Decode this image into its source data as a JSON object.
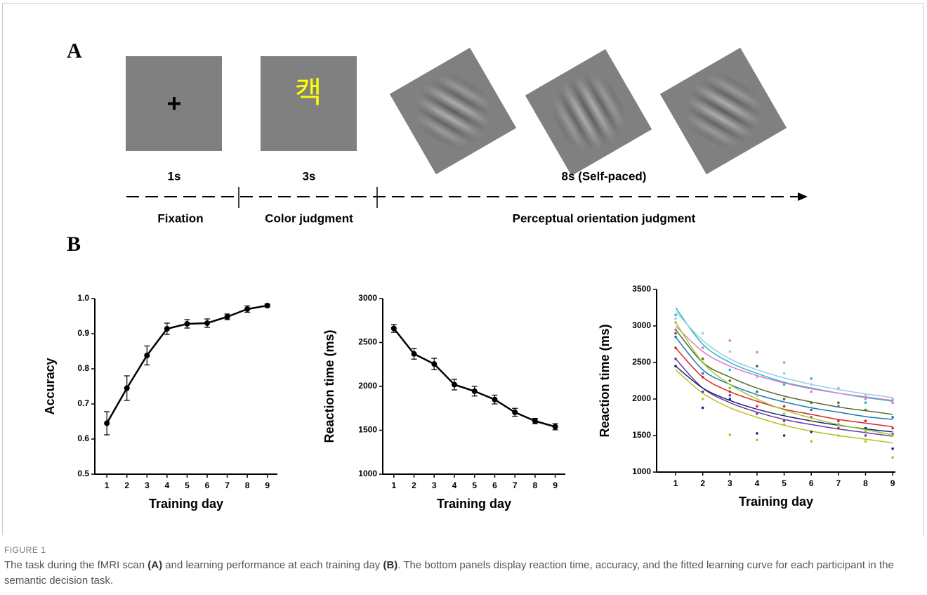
{
  "figure": {
    "panel_a": "A",
    "panel_b": "B",
    "fixation_symbol": "+",
    "color_stimulus": "캑",
    "durations": [
      "1s",
      "3s",
      "8s (Self-paced)"
    ],
    "phases": [
      "Fixation",
      "Color judgment",
      "Perceptual orientation judgment"
    ]
  },
  "chart_data": [
    {
      "type": "line",
      "xlabel": "Training day",
      "ylabel": "Accuracy",
      "color": "#000000",
      "x": [
        1,
        2,
        3,
        4,
        5,
        6,
        7,
        8,
        9
      ],
      "values": [
        0.645,
        0.745,
        0.838,
        0.914,
        0.928,
        0.93,
        0.948,
        0.97,
        0.98
      ],
      "errors": [
        0.033,
        0.035,
        0.027,
        0.016,
        0.012,
        0.012,
        0.008,
        0.009,
        0.004
      ],
      "xlim": [
        0.4,
        9.5
      ],
      "xticks": [
        1,
        2,
        3,
        4,
        5,
        6,
        7,
        8,
        9
      ],
      "ylim": [
        0.5,
        1
      ],
      "yticks": [
        0.5,
        0.6,
        0.7,
        0.8,
        0.9,
        {
          "value": 1,
          "label": "1.0"
        }
      ]
    },
    {
      "type": "line",
      "xlabel": "Training day",
      "ylabel": "Reaction time (ms)",
      "color": "#000000",
      "x": [
        1,
        2,
        3,
        4,
        5,
        6,
        7,
        8,
        9
      ],
      "values": [
        2660,
        2370,
        2255,
        2020,
        1945,
        1850,
        1705,
        1605,
        1540
      ],
      "errors": [
        45,
        60,
        65,
        60,
        55,
        50,
        45,
        30,
        35
      ],
      "xlim": [
        0.45,
        9.5
      ],
      "xticks": [
        1,
        2,
        3,
        4,
        5,
        6,
        7,
        8,
        9
      ],
      "ylim": [
        1000,
        3000
      ],
      "yticks": [
        1000,
        1500,
        2000,
        2500,
        3000
      ]
    },
    {
      "type": "scatter",
      "xlabel": "Training day",
      "ylabel": "Reaction time (ms)",
      "x": [
        1,
        2,
        3,
        4,
        5,
        6,
        7,
        8,
        9
      ],
      "xlim": [
        0.3,
        9.1
      ],
      "xticks": [
        1,
        2,
        3,
        4,
        5,
        6,
        7,
        8,
        9
      ],
      "ylim": [
        1000,
        3500
      ],
      "yticks": [
        1000,
        1500,
        2000,
        2500,
        3000,
        3500
      ],
      "series": [
        {
          "color": "#17becf",
          "values": [
            3150,
            2700,
            2400,
            2450,
            2200,
            2280,
            2150,
            1950,
            1990
          ],
          "fit": [
            3250,
            2750,
            2500,
            2350,
            2230,
            2150,
            2080,
            2020,
            1970
          ]
        },
        {
          "color": "#e377c2",
          "values": [
            2950,
            2700,
            2800,
            2640,
            2500,
            2100,
            2150,
            2000,
            1950
          ],
          "fit": [
            3000,
            2650,
            2450,
            2320,
            2220,
            2140,
            2080,
            2030,
            1980
          ]
        },
        {
          "color": "#556b2f",
          "values": [
            2900,
            2550,
            2250,
            2450,
            2000,
            1950,
            1950,
            1850,
            1750
          ],
          "fit": [
            2950,
            2500,
            2300,
            2150,
            2040,
            1960,
            1890,
            1840,
            1790
          ]
        },
        {
          "color": "#1f77b4",
          "values": [
            2850,
            2350,
            2150,
            2100,
            1900,
            1850,
            1900,
            1700,
            1750
          ],
          "fit": [
            2850,
            2400,
            2200,
            2060,
            1960,
            1880,
            1820,
            1760,
            1720
          ]
        },
        {
          "color": "#bcbd22",
          "values": [
            2450,
            2000,
            1510,
            1440,
            1650,
            1420,
            1500,
            1420,
            1200
          ],
          "fit": [
            2400,
            2080,
            1880,
            1750,
            1640,
            1560,
            1500,
            1450,
            1400
          ]
        },
        {
          "color": "#6a3d9a",
          "values": [
            2550,
            2100,
            2050,
            1800,
            1700,
            1700,
            1600,
            1500,
            1520
          ],
          "fit": [
            2550,
            2150,
            1950,
            1820,
            1720,
            1650,
            1590,
            1540,
            1490
          ]
        },
        {
          "color": "#d62728",
          "values": [
            2700,
            2300,
            2100,
            1900,
            1900,
            1750,
            1700,
            1700,
            1600
          ],
          "fit": [
            2700,
            2300,
            2100,
            1970,
            1860,
            1790,
            1720,
            1670,
            1620
          ]
        },
        {
          "color": "#1a237e",
          "values": [
            2450,
            1880,
            2000,
            1530,
            1500,
            1550,
            1650,
            1600,
            1320
          ],
          "fit": [
            2450,
            2150,
            1980,
            1860,
            1770,
            1700,
            1640,
            1590,
            1550
          ]
        },
        {
          "color": "#9ecae1",
          "values": [
            3100,
            2900,
            2650,
            2300,
            2350,
            2200,
            2150,
            2050,
            2000
          ],
          "fit": [
            3200,
            2800,
            2550,
            2400,
            2290,
            2200,
            2130,
            2070,
            2020
          ]
        },
        {
          "color": "#9acd32",
          "values": [
            3050,
            2500,
            2150,
            2050,
            1800,
            1700,
            1640,
            1560,
            1500
          ],
          "fit": [
            3050,
            2500,
            2200,
            2000,
            1850,
            1740,
            1650,
            1580,
            1510
          ]
        }
      ]
    }
  ],
  "caption": {
    "label": "FIGURE 1",
    "parts": [
      "The task during the fMRI scan ",
      "(A)",
      " and learning performance at each training day ",
      "(B)",
      ". The bottom panels display reaction time, accuracy, and the fitted learning curve for each participant in the semantic decision task."
    ]
  }
}
